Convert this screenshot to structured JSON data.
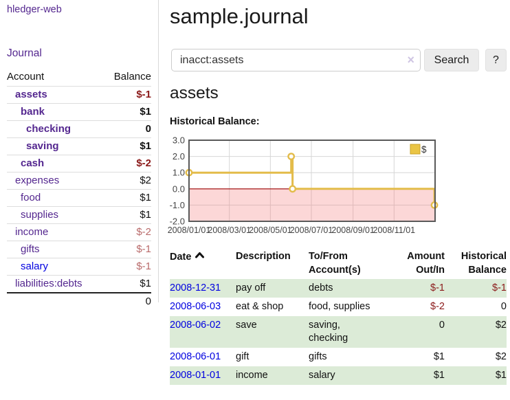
{
  "brand": "hledger-web",
  "nav": {
    "journal": "Journal"
  },
  "sidebar": {
    "headers": {
      "account": "Account",
      "balance": "Balance"
    },
    "accounts": [
      {
        "name": "assets",
        "indent": 1,
        "bold": true,
        "link": "purple",
        "balance": "$-1",
        "amount_style": "neg"
      },
      {
        "name": "bank",
        "indent": 2,
        "bold": true,
        "link": "purple",
        "balance": "$1",
        "amount_style": "pos"
      },
      {
        "name": "checking",
        "indent": 3,
        "bold": true,
        "link": "purple",
        "balance": "0",
        "amount_style": "pos"
      },
      {
        "name": "saving",
        "indent": 3,
        "bold": true,
        "link": "purple",
        "balance": "$1",
        "amount_style": "pos"
      },
      {
        "name": "cash",
        "indent": 2,
        "bold": true,
        "link": "purple",
        "balance": "$-2",
        "amount_style": "neg"
      },
      {
        "name": "expenses",
        "indent": 1,
        "bold": false,
        "link": "purple",
        "balance": "$2",
        "amount_style": "pos"
      },
      {
        "name": "food",
        "indent": 2,
        "bold": false,
        "link": "purple",
        "balance": "$1",
        "amount_style": "pos"
      },
      {
        "name": "supplies",
        "indent": 2,
        "bold": false,
        "link": "purple",
        "balance": "$1",
        "amount_style": "pos"
      },
      {
        "name": "income",
        "indent": 1,
        "bold": false,
        "link": "purple",
        "balance": "$-2",
        "amount_style": "negfaded"
      },
      {
        "name": "gifts",
        "indent": 2,
        "bold": false,
        "link": "purple",
        "balance": "$-1",
        "amount_style": "negfaded"
      },
      {
        "name": "salary",
        "indent": 2,
        "bold": false,
        "link": "blue",
        "balance": "$-1",
        "amount_style": "negfaded"
      },
      {
        "name": "liabilities:debts",
        "indent": 1,
        "bold": false,
        "link": "purple",
        "balance": "$1",
        "amount_style": "pos"
      }
    ],
    "total": "0"
  },
  "main": {
    "title": "sample.journal",
    "search": {
      "value": "inacct:assets",
      "clear_icon": "×",
      "button_label": "Search",
      "help_label": "?"
    },
    "account_heading": "assets",
    "chart_label": "Historical Balance:"
  },
  "chart_data": {
    "type": "line",
    "step": true,
    "title": "Historical Balance:",
    "series": [
      {
        "name": "$",
        "x": [
          "2008-01-01",
          "2008-06-01",
          "2008-06-03",
          "2008-12-31"
        ],
        "values": [
          1,
          2,
          0,
          -1
        ]
      }
    ],
    "x_ticks": [
      {
        "label": "2008/01/01",
        "date": "2008-01-01"
      },
      {
        "label": "2008/03/01",
        "date": "2008-03-01"
      },
      {
        "label": "2008/05/01",
        "date": "2008-05-01"
      },
      {
        "label": "2008/07/01",
        "date": "2008-07-01"
      },
      {
        "label": "2008/09/01",
        "date": "2008-09-01"
      },
      {
        "label": "2008/11/01",
        "date": "2008-11-01"
      }
    ],
    "y_ticks": [
      3.0,
      2.0,
      1.0,
      0.0,
      -1.0,
      -2.0
    ],
    "ylim": [
      -2,
      3
    ],
    "xlim": [
      "2008-01-01",
      "2009-01-01"
    ],
    "grid": true,
    "legend": {
      "position": "top-right",
      "entries": [
        "$"
      ]
    },
    "colors": {
      "line": "#e3bc4a",
      "point_fill": "#ffffff",
      "negative_region": "rgba(244,124,124,0.30)",
      "zero_line": "#9a0000",
      "border": "#595959",
      "gridline": "#d6d6d6",
      "tick_text": "#444444",
      "legend_swatch": "#eac545",
      "legend_swatch_border": "#c9a227"
    }
  },
  "register": {
    "headers": {
      "date": "Date",
      "description": "Description",
      "tofrom": "To/From Account(s)",
      "amount": "Amount Out/In",
      "balance": "Historical Balance"
    },
    "rows": [
      {
        "date": "2008-12-31",
        "description": "pay off",
        "accounts": "debts",
        "amount": "$-1",
        "amount_style": "neg",
        "balance": "$-1",
        "balance_style": "neg"
      },
      {
        "date": "2008-06-03",
        "description": "eat & shop",
        "accounts": "food, supplies",
        "amount": "$-2",
        "amount_style": "neg",
        "balance": "0",
        "balance_style": "pos"
      },
      {
        "date": "2008-06-02",
        "description": "save",
        "accounts": "saving, checking",
        "amount": "0",
        "amount_style": "pos",
        "balance": "$2",
        "balance_style": "pos"
      },
      {
        "date": "2008-06-01",
        "description": "gift",
        "accounts": "gifts",
        "amount": "$1",
        "amount_style": "pos",
        "balance": "$2",
        "balance_style": "pos"
      },
      {
        "date": "2008-01-01",
        "description": "income",
        "accounts": "salary",
        "amount": "$1",
        "amount_style": "pos",
        "balance": "$1",
        "balance_style": "pos"
      }
    ]
  }
}
